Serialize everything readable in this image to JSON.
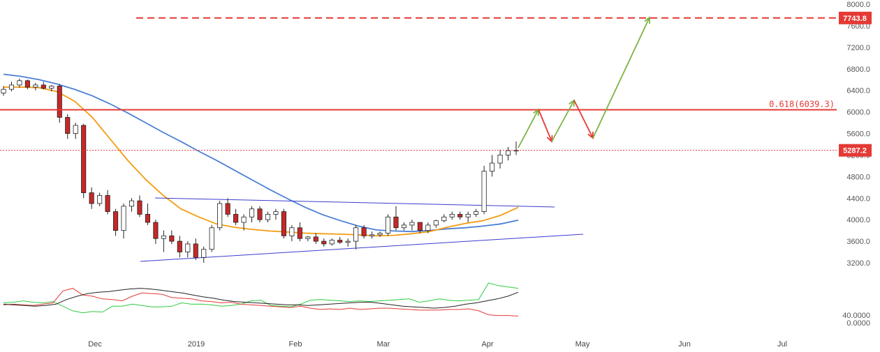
{
  "chart_data": {
    "type": "candlestick",
    "y_ticks": [
      3200,
      3600,
      4000,
      4400,
      4800,
      5200,
      5600,
      6000,
      6400,
      6800,
      7200,
      7600,
      8000
    ],
    "y_tick_labels": [
      "3200.0",
      "3600.0",
      "4000.0",
      "4400.0",
      "4800.0",
      "5200.0",
      "5600.0",
      "6000.0",
      "6400.0",
      "6800.0",
      "7200.0",
      "7600.0",
      "8000.0"
    ],
    "ylim": [
      3000,
      8050
    ],
    "x_ticks": [
      "Dec",
      "2019",
      "Feb",
      "Mar",
      "Apr",
      "May",
      "Jun",
      "Jul"
    ],
    "price_tags": [
      {
        "label": "7743.8",
        "value": 7743.8,
        "color": "#e53935",
        "style": "dashed"
      },
      {
        "label": "5287.2",
        "value": 5287.2,
        "color": "#e53935",
        "style": "dotted"
      }
    ],
    "fib_level": {
      "label": "0.618(6039.3)",
      "value": 6039.3,
      "color": "#e53935"
    },
    "candles": [
      [
        6350,
        6480,
        6300,
        6420
      ],
      [
        6420,
        6560,
        6380,
        6500
      ],
      [
        6500,
        6620,
        6450,
        6580
      ],
      [
        6580,
        6600,
        6420,
        6460
      ],
      [
        6460,
        6540,
        6400,
        6500
      ],
      [
        6500,
        6560,
        6420,
        6440
      ],
      [
        6440,
        6500,
        6380,
        6480
      ],
      [
        6480,
        6520,
        5800,
        5900
      ],
      [
        5900,
        5960,
        5500,
        5600
      ],
      [
        5600,
        5800,
        5500,
        5750
      ],
      [
        5750,
        5780,
        4400,
        4500
      ],
      [
        4500,
        4600,
        4200,
        4300
      ],
      [
        4300,
        4500,
        4250,
        4450
      ],
      [
        4450,
        4550,
        4100,
        4150
      ],
      [
        4150,
        4200,
        3700,
        3800
      ],
      [
        3800,
        4300,
        3650,
        4250
      ],
      [
        4250,
        4400,
        4150,
        4350
      ],
      [
        4350,
        4450,
        4050,
        4100
      ],
      [
        4100,
        4300,
        3900,
        3950
      ],
      [
        3950,
        4000,
        3550,
        3650
      ],
      [
        3650,
        3800,
        3400,
        3700
      ],
      [
        3700,
        3800,
        3550,
        3600
      ],
      [
        3600,
        3700,
        3300,
        3400
      ],
      [
        3400,
        3600,
        3300,
        3550
      ],
      [
        3550,
        3650,
        3250,
        3300
      ],
      [
        3300,
        3500,
        3200,
        3450
      ],
      [
        3450,
        3900,
        3400,
        3850
      ],
      [
        3850,
        4350,
        3800,
        4300
      ],
      [
        4300,
        4400,
        4050,
        4100
      ],
      [
        4100,
        4200,
        3900,
        3950
      ],
      [
        3950,
        4100,
        3800,
        4050
      ],
      [
        4050,
        4250,
        3950,
        4200
      ],
      [
        4200,
        4250,
        3950,
        4000
      ],
      [
        4000,
        4150,
        3950,
        4100
      ],
      [
        4100,
        4200,
        4000,
        4150
      ],
      [
        4150,
        4200,
        3650,
        3700
      ],
      [
        3700,
        3900,
        3600,
        3850
      ],
      [
        3850,
        3950,
        3600,
        3650
      ],
      [
        3650,
        3700,
        3600,
        3680
      ],
      [
        3680,
        3750,
        3550,
        3600
      ],
      [
        3600,
        3650,
        3500,
        3550
      ],
      [
        3550,
        3650,
        3520,
        3620
      ],
      [
        3620,
        3680,
        3550,
        3580
      ],
      [
        3580,
        3650,
        3500,
        3600
      ],
      [
        3600,
        3900,
        3450,
        3850
      ],
      [
        3850,
        3900,
        3650,
        3700
      ],
      [
        3700,
        3780,
        3650,
        3720
      ],
      [
        3720,
        3780,
        3680,
        3750
      ],
      [
        3750,
        4100,
        3700,
        4050
      ],
      [
        4050,
        4250,
        3800,
        3850
      ],
      [
        3850,
        3950,
        3800,
        3900
      ],
      [
        3900,
        4000,
        3800,
        3950
      ],
      [
        3950,
        3950,
        3750,
        3800
      ],
      [
        3800,
        3950,
        3750,
        3900
      ],
      [
        3900,
        4000,
        3850,
        3980
      ],
      [
        3980,
        4100,
        3950,
        4050
      ],
      [
        4050,
        4150,
        4000,
        4100
      ],
      [
        4100,
        4150,
        4000,
        4050
      ],
      [
        4050,
        4150,
        3950,
        4100
      ],
      [
        4100,
        4200,
        4050,
        4150
      ],
      [
        4150,
        5000,
        4100,
        4900
      ],
      [
        4900,
        5200,
        4800,
        5050
      ],
      [
        5050,
        5300,
        4950,
        5200
      ],
      [
        5200,
        5350,
        5100,
        5280
      ],
      [
        5280,
        5450,
        5200,
        5287
      ]
    ],
    "ma_orange": [
      6460,
      6460,
      6450,
      6380,
      6200,
      5900,
      5500,
      5100,
      4750,
      4450,
      4200,
      4050,
      3920,
      3860,
      3820,
      3790,
      3770,
      3750,
      3740,
      3730,
      3720,
      3700,
      3710,
      3740,
      3780,
      3860,
      3930,
      3980,
      4080,
      4230
    ],
    "ma_blue": [
      6700,
      6660,
      6600,
      6520,
      6420,
      6300,
      6150,
      5980,
      5800,
      5620,
      5450,
      5270,
      5100,
      4920,
      4740,
      4560,
      4390,
      4230,
      4090,
      3980,
      3880,
      3810,
      3790,
      3780,
      3800,
      3830,
      3850,
      3880,
      3920,
      3990
    ],
    "osc_green": [
      30,
      31,
      33,
      31,
      30,
      32,
      25,
      18,
      15,
      17,
      16,
      25,
      25,
      28,
      26,
      24,
      24,
      25,
      30,
      28,
      28,
      27,
      25,
      26,
      28,
      33,
      34,
      26,
      25,
      24,
      28,
      34,
      35,
      34,
      33,
      32,
      33,
      32,
      33,
      34,
      35,
      36,
      31,
      33,
      36,
      34,
      33,
      34,
      35,
      60,
      56,
      54,
      52
    ],
    "osc_red": [
      27,
      28,
      27,
      26,
      28,
      30,
      48,
      52,
      42,
      40,
      36,
      35,
      33,
      40,
      45,
      44,
      43,
      38,
      37,
      36,
      33,
      32,
      30,
      31,
      28,
      27,
      26,
      25,
      24,
      23,
      25,
      22,
      20,
      21,
      20,
      22,
      20,
      21,
      22,
      22,
      21,
      20,
      19,
      19,
      19,
      20,
      20,
      21,
      18,
      12,
      11,
      11,
      10
    ],
    "osc_black": [
      28,
      27,
      26,
      25,
      26,
      28,
      35,
      40,
      44,
      46,
      47,
      49,
      51,
      52,
      51,
      49,
      47,
      45,
      42,
      39,
      37,
      34,
      32,
      31,
      30,
      29,
      28,
      27,
      27,
      26,
      27,
      28,
      29,
      30,
      31,
      31,
      29,
      27,
      25,
      24,
      23,
      22,
      23,
      25,
      28,
      30,
      33,
      36,
      40,
      46
    ]
  }
}
